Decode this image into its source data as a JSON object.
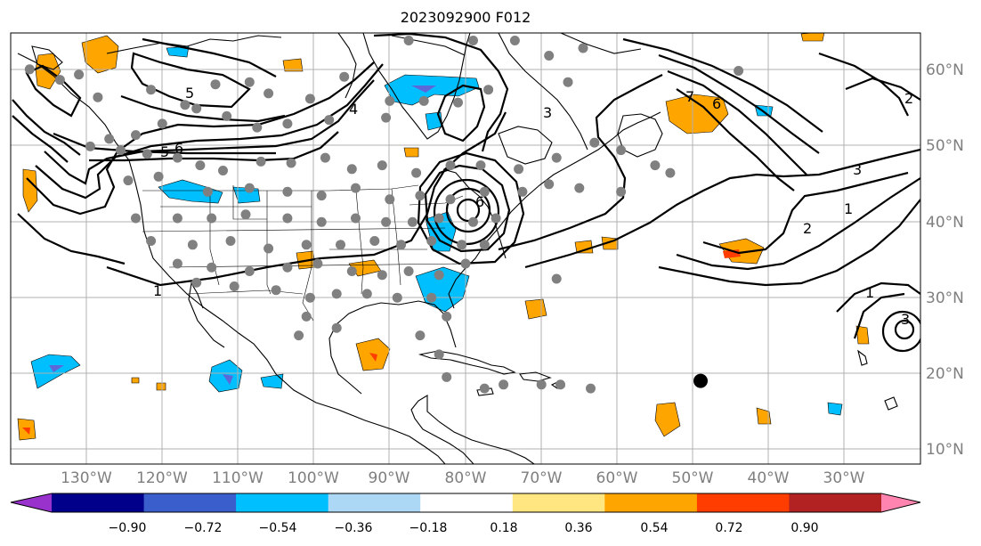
{
  "title": "2023092900 F012",
  "map": {
    "lon_ticks": [
      "130°W",
      "120°W",
      "110°W",
      "100°W",
      "90°W",
      "80°W",
      "70°W",
      "60°W",
      "50°W",
      "40°W",
      "30°W"
    ],
    "lat_ticks": [
      "60°N",
      "50°N",
      "40°N",
      "30°N",
      "20°N",
      "10°N"
    ],
    "grid": true,
    "extent": {
      "lon": [
        -138,
        -18
      ],
      "lat": [
        8,
        65
      ]
    }
  },
  "contour_labels": [
    "1",
    "1",
    "2",
    "2",
    "3",
    "3",
    "4",
    "5",
    "5",
    "6",
    "6",
    "6",
    "7",
    "1",
    "3"
  ],
  "colorbar": {
    "tick_labels": [
      "−0.90",
      "−0.72",
      "−0.54",
      "−0.36",
      "−0.18",
      "0.18",
      "0.36",
      "0.54",
      "0.72",
      "0.90"
    ],
    "colors": [
      "#9932cc",
      "#00008b",
      "#3a5fcd",
      "#00bfff",
      "#add8f5",
      "#ffffff",
      "#ffe680",
      "#ffa500",
      "#ff3d00",
      "#b22222",
      "#ff85b0"
    ],
    "extend": "both"
  },
  "markers": {
    "observation_color": "#808080",
    "observation_points": [
      [
        -135.5,
        60.2
      ],
      [
        -131.5,
        58.8
      ],
      [
        -129.0,
        59.5
      ],
      [
        -126.5,
        56.5
      ],
      [
        -119.5,
        57.5
      ],
      [
        -115.0,
        55.5
      ],
      [
        -111.0,
        58.2
      ],
      [
        -106.5,
        58.5
      ],
      [
        -104.0,
        57.0
      ],
      [
        -98.5,
        56.3
      ],
      [
        -94.0,
        59.2
      ],
      [
        -88.0,
        56.0
      ],
      [
        -85.5,
        64.0
      ],
      [
        -77.0,
        64.0
      ],
      [
        -71.5,
        64.0
      ],
      [
        -67.0,
        62.0
      ],
      [
        -62.5,
        63.0
      ],
      [
        -64.5,
        58.5
      ],
      [
        -75.0,
        57.5
      ],
      [
        -79.0,
        55.8
      ],
      [
        -83.5,
        56.0
      ],
      [
        -88.5,
        53.8
      ],
      [
        -96.0,
        53.5
      ],
      [
        -101.5,
        53.0
      ],
      [
        -105.5,
        52.5
      ],
      [
        -109.5,
        54.0
      ],
      [
        -113.5,
        55.0
      ],
      [
        -118.0,
        53.0
      ],
      [
        -121.5,
        51.5
      ],
      [
        -125.0,
        51.0
      ],
      [
        -127.5,
        50.0
      ],
      [
        -123.5,
        49.5
      ],
      [
        -120.0,
        49.0
      ],
      [
        -116.0,
        48.5
      ],
      [
        -113.0,
        47.5
      ],
      [
        -110.0,
        46.8
      ],
      [
        -105.0,
        48.0
      ],
      [
        -101.0,
        47.8
      ],
      [
        -96.5,
        48.5
      ],
      [
        -93.0,
        47.0
      ],
      [
        -89.0,
        47.5
      ],
      [
        -84.5,
        46.5
      ],
      [
        -80.0,
        47.5
      ],
      [
        -76.0,
        47.5
      ],
      [
        -71.0,
        47.0
      ],
      [
        -66.0,
        48.5
      ],
      [
        -61.0,
        50.5
      ],
      [
        -57.5,
        49.5
      ],
      [
        -53.0,
        47.5
      ],
      [
        -51.0,
        46.5
      ],
      [
        -122.5,
        45.5
      ],
      [
        -118.5,
        46.0
      ],
      [
        -112.0,
        44.0
      ],
      [
        -106.5,
        44.5
      ],
      [
        -101.5,
        44.0
      ],
      [
        -97.0,
        43.5
      ],
      [
        -92.5,
        44.5
      ],
      [
        -88.0,
        43.0
      ],
      [
        -84.0,
        43.5
      ],
      [
        -80.0,
        43.0
      ],
      [
        -75.5,
        44.0
      ],
      [
        -70.5,
        44.0
      ],
      [
        -67.0,
        45.0
      ],
      [
        -63.0,
        44.5
      ],
      [
        -57.5,
        44.0
      ],
      [
        -121.5,
        40.5
      ],
      [
        -116.0,
        40.5
      ],
      [
        -111.5,
        40.5
      ],
      [
        -107.0,
        41.0
      ],
      [
        -101.5,
        40.5
      ],
      [
        -97.0,
        40.0
      ],
      [
        -92.5,
        40.5
      ],
      [
        -88.5,
        40.0
      ],
      [
        -85.0,
        40.0
      ],
      [
        -81.5,
        40.5
      ],
      [
        -77.0,
        40.0
      ],
      [
        -74.0,
        40.5
      ],
      [
        -119.5,
        37.5
      ],
      [
        -114.0,
        37.0
      ],
      [
        -109.0,
        37.5
      ],
      [
        -104.0,
        36.5
      ],
      [
        -99.0,
        37.0
      ],
      [
        -94.5,
        37.0
      ],
      [
        -90.0,
        37.5
      ],
      [
        -86.5,
        37.0
      ],
      [
        -82.5,
        37.5
      ],
      [
        -78.5,
        37.0
      ],
      [
        -75.5,
        37.0
      ],
      [
        -116.0,
        34.5
      ],
      [
        -111.5,
        34.0
      ],
      [
        -106.5,
        33.5
      ],
      [
        -101.5,
        34.0
      ],
      [
        -97.5,
        34.5
      ],
      [
        -93.0,
        33.5
      ],
      [
        -89.0,
        33.0
      ],
      [
        -85.5,
        33.5
      ],
      [
        -81.5,
        33.0
      ],
      [
        -78.0,
        34.5
      ],
      [
        -113.5,
        32.0
      ],
      [
        -108.5,
        31.5
      ],
      [
        -103.0,
        31.0
      ],
      [
        -98.5,
        30.0
      ],
      [
        -95.0,
        30.5
      ],
      [
        -91.0,
        30.5
      ],
      [
        -87.0,
        30.0
      ],
      [
        -82.5,
        30.0
      ],
      [
        -80.5,
        27.5
      ],
      [
        -99.0,
        27.5
      ],
      [
        -95.0,
        26.0
      ],
      [
        -100.0,
        25.0
      ],
      [
        -84.0,
        25.0
      ],
      [
        -81.5,
        22.5
      ],
      [
        -80.5,
        19.5
      ],
      [
        -75.5,
        18.0
      ],
      [
        -73.0,
        18.5
      ],
      [
        -68.0,
        18.5
      ],
      [
        -65.5,
        18.5
      ],
      [
        -61.5,
        18.0
      ],
      [
        -66.0,
        32.5
      ],
      [
        -42.0,
        60.0
      ]
    ],
    "highlight_point": [
      -47.0,
      19.0
    ]
  }
}
